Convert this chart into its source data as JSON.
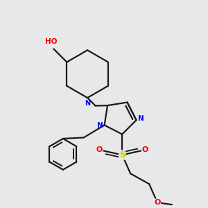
{
  "bg_color": "#e8e8ea",
  "bond_color": "#1a1a1a",
  "N_color": "#0000ee",
  "O_color": "#ee0000",
  "S_color": "#cccc00",
  "lw": 1.6,
  "figsize": [
    3.0,
    3.0
  ],
  "dpi": 100,
  "xlim": [
    0.0,
    1.0
  ],
  "ylim": [
    0.0,
    1.0
  ]
}
